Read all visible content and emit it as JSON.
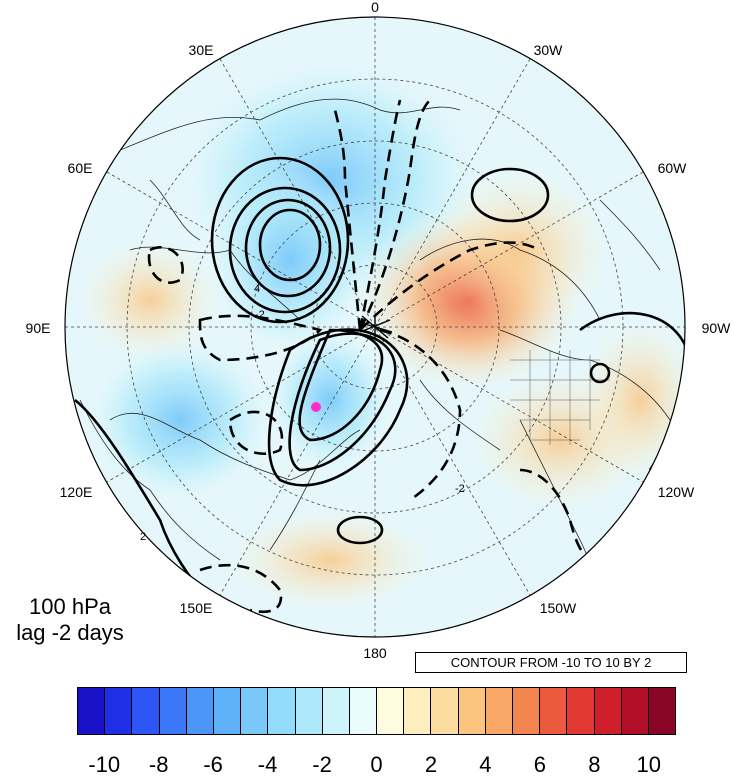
{
  "title": {
    "level": "100 hPa",
    "lag": "lag -2 days"
  },
  "contour_info": "CONTOUR FROM -10 TO 10 BY 2",
  "longitude_labels": [
    "0",
    "30W",
    "60W",
    "90W",
    "120W",
    "150W",
    "180",
    "150E",
    "120E",
    "90E",
    "60E",
    "30E"
  ],
  "colorbar": {
    "labels": [
      "-10",
      "-8",
      "-6",
      "-4",
      "-2",
      "0",
      "2",
      "4",
      "6",
      "8",
      "10"
    ],
    "colors": [
      "#1a12c9",
      "#1f2fe8",
      "#2e55f5",
      "#3b78f7",
      "#4b96f7",
      "#5fb2f8",
      "#79c8f9",
      "#93dcf9",
      "#ade9fa",
      "#cdf4fb",
      "#e9fbfd",
      "#fefbe0",
      "#fdeec0",
      "#fcdca0",
      "#fbc47f",
      "#f9a867",
      "#f3854f",
      "#ec5a3e",
      "#e23a33",
      "#cf1f2c",
      "#b21029",
      "#8b0526"
    ]
  },
  "marker": {
    "color": "#ff2ec9",
    "label": ""
  }
}
